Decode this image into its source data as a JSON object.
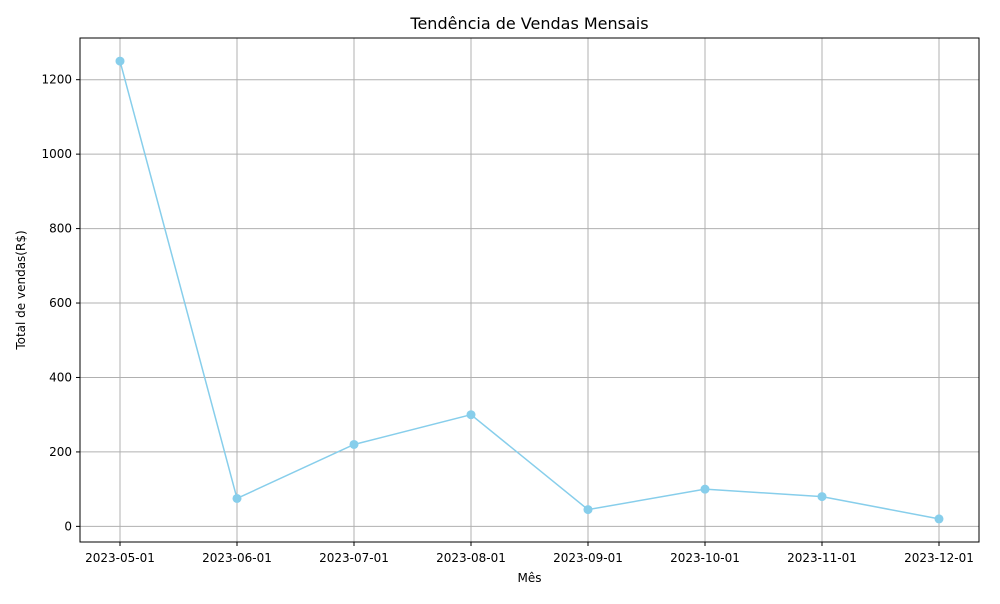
{
  "chart_data": {
    "type": "line",
    "title": "Tendência de Vendas Mensais",
    "xlabel": "Mês",
    "ylabel": "Total de vendas(R$)",
    "x": [
      "2023-05-01",
      "2023-06-01",
      "2023-07-01",
      "2023-08-01",
      "2023-09-01",
      "2023-10-01",
      "2023-11-01",
      "2023-12-01"
    ],
    "series": [
      {
        "values": [
          1250,
          75,
          220,
          300,
          45,
          100,
          80,
          20
        ]
      }
    ],
    "ylim": [
      -42,
      1312
    ],
    "yticks": [
      0,
      200,
      400,
      600,
      800,
      1000,
      1200
    ],
    "xticks": [
      "2023-05-01",
      "2023-06-01",
      "2023-07-01",
      "2023-08-01",
      "2023-09-01",
      "2023-10-01",
      "2023-11-01",
      "2023-12-01"
    ],
    "grid": true,
    "marker": "circle",
    "colors": {
      "line": "#87ceeb",
      "grid": "#b0b0b0",
      "axis": "#000000"
    }
  }
}
